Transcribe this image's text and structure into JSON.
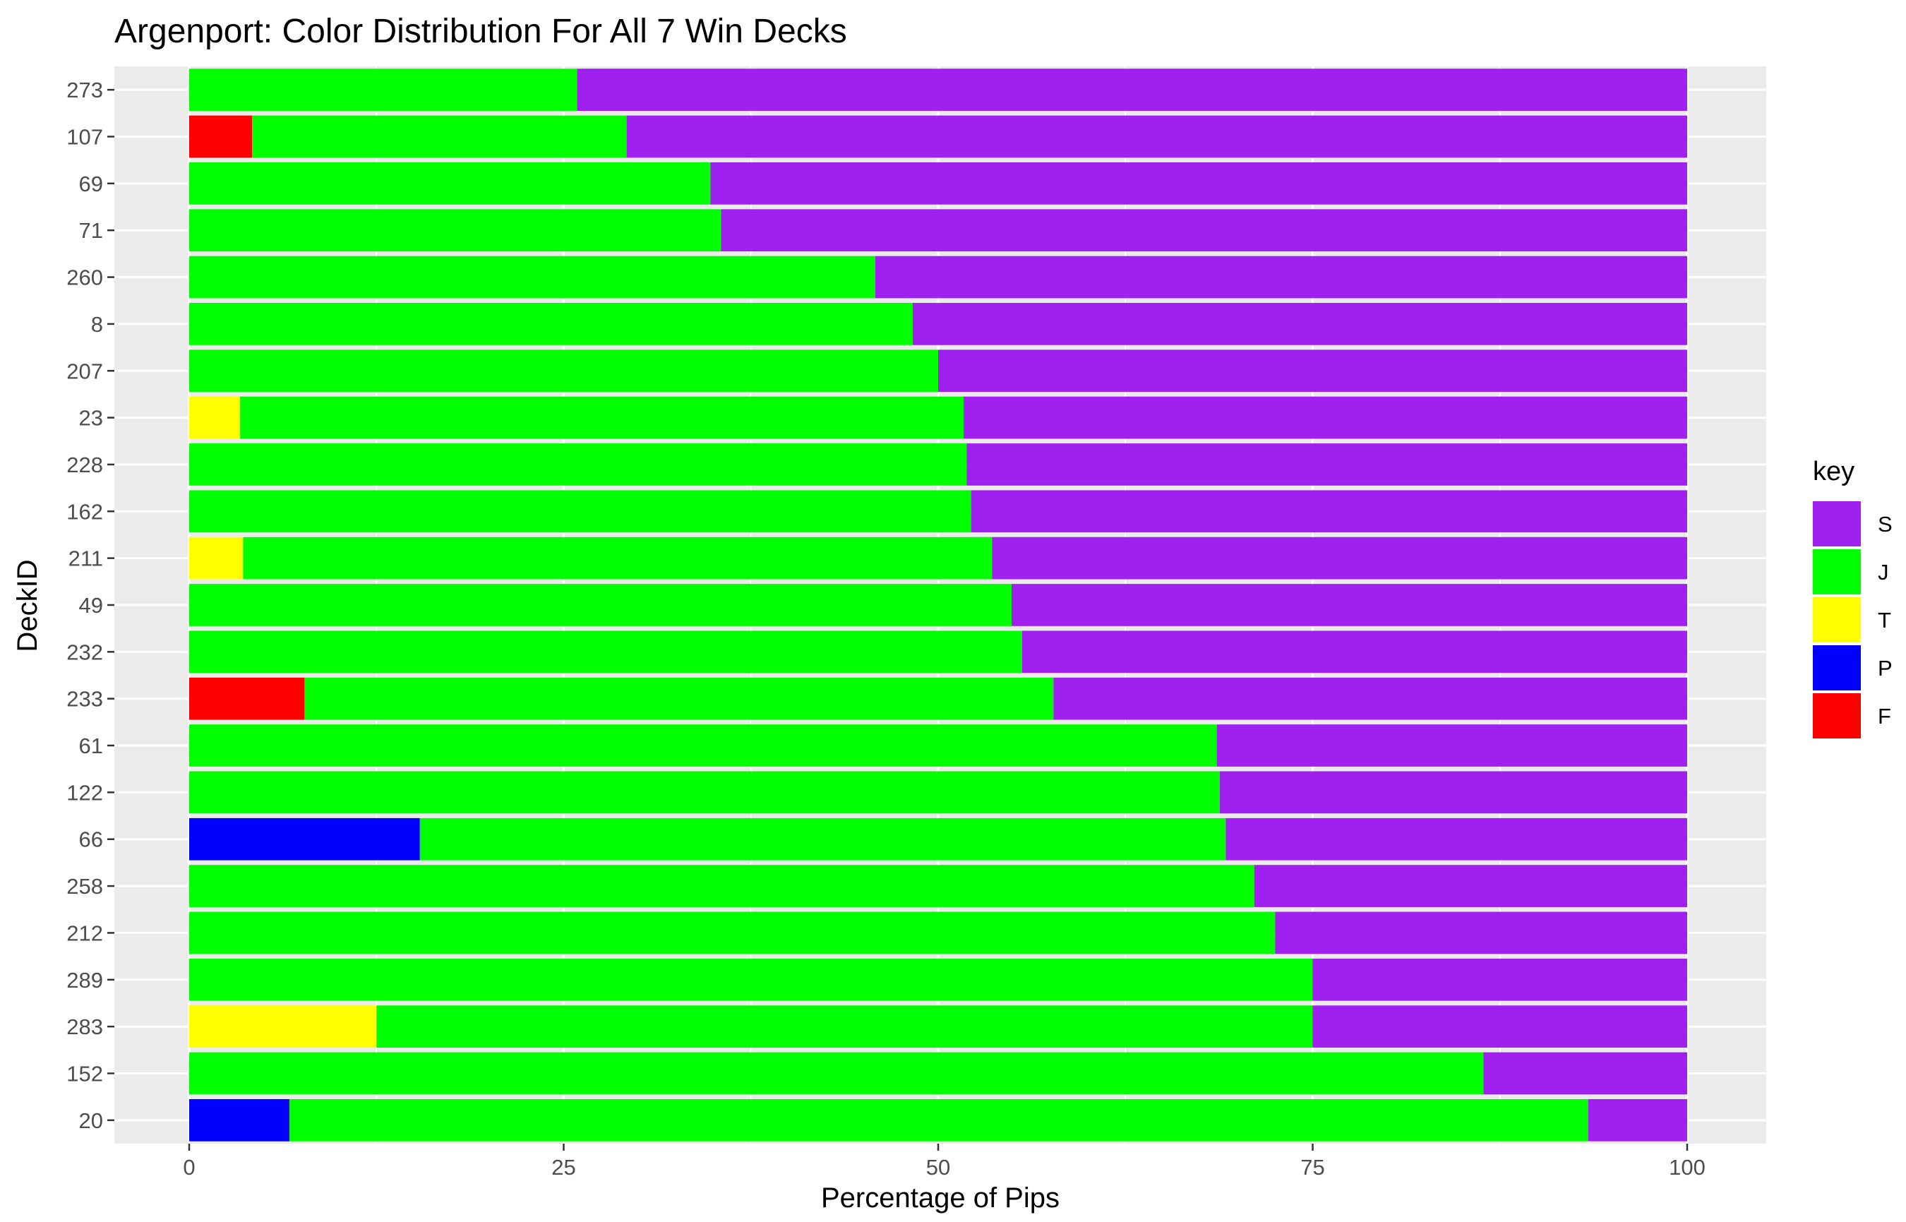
{
  "chart_data": {
    "type": "bar",
    "orientation": "horizontal",
    "stacked": true,
    "title": "Argenport: Color Distribution For All 7 Win Decks",
    "xlabel": "Percentage of Pips",
    "ylabel": "DeckID",
    "xlim": [
      0,
      100
    ],
    "x_ticks": [
      "0",
      "25",
      "50",
      "75",
      "100"
    ],
    "grid": true,
    "legend_position": "right",
    "legend_title": "key",
    "legend": [
      {
        "key": "S",
        "color": "#A020F0"
      },
      {
        "key": "J",
        "color": "#00FF00"
      },
      {
        "key": "T",
        "color": "#FFFF00"
      },
      {
        "key": "P",
        "color": "#0000FF"
      },
      {
        "key": "F",
        "color": "#FF0000"
      }
    ],
    "stack_order": [
      "F",
      "P",
      "T",
      "J",
      "S"
    ],
    "categories": [
      "273",
      "107",
      "69",
      "71",
      "260",
      "8",
      "207",
      "23",
      "228",
      "162",
      "211",
      "49",
      "232",
      "233",
      "61",
      "122",
      "66",
      "258",
      "212",
      "289",
      "283",
      "152",
      "20"
    ],
    "series": [
      {
        "name": "F",
        "values": [
          0,
          4.2,
          0,
          0,
          0,
          0,
          0,
          0,
          0,
          0,
          0,
          0,
          0,
          7.7,
          0,
          0,
          0,
          0,
          0,
          0,
          0,
          0,
          0
        ]
      },
      {
        "name": "P",
        "values": [
          0,
          0,
          0,
          0,
          0,
          0,
          0,
          0,
          0,
          0,
          0,
          0,
          0,
          0,
          0,
          0,
          15.4,
          0,
          0,
          0,
          0,
          0,
          6.7
        ]
      },
      {
        "name": "T",
        "values": [
          0,
          0,
          0,
          0,
          0,
          0,
          0,
          3.4,
          0,
          0,
          3.6,
          0,
          0,
          0,
          0,
          0,
          0,
          0,
          0,
          0,
          12.5,
          0,
          0
        ]
      },
      {
        "name": "J",
        "values": [
          25.9,
          25.0,
          34.8,
          35.5,
          45.8,
          48.3,
          50.0,
          48.3,
          51.9,
          52.2,
          50.0,
          54.9,
          55.6,
          50.0,
          68.6,
          68.8,
          53.8,
          71.1,
          72.5,
          75.0,
          62.5,
          86.4,
          86.7
        ]
      },
      {
        "name": "S",
        "values": [
          74.1,
          70.8,
          65.2,
          64.5,
          54.2,
          51.7,
          50.0,
          48.3,
          48.1,
          47.8,
          46.4,
          45.1,
          44.4,
          42.3,
          31.4,
          31.2,
          30.8,
          28.9,
          27.5,
          25.0,
          25.0,
          13.6,
          6.6
        ]
      }
    ]
  }
}
